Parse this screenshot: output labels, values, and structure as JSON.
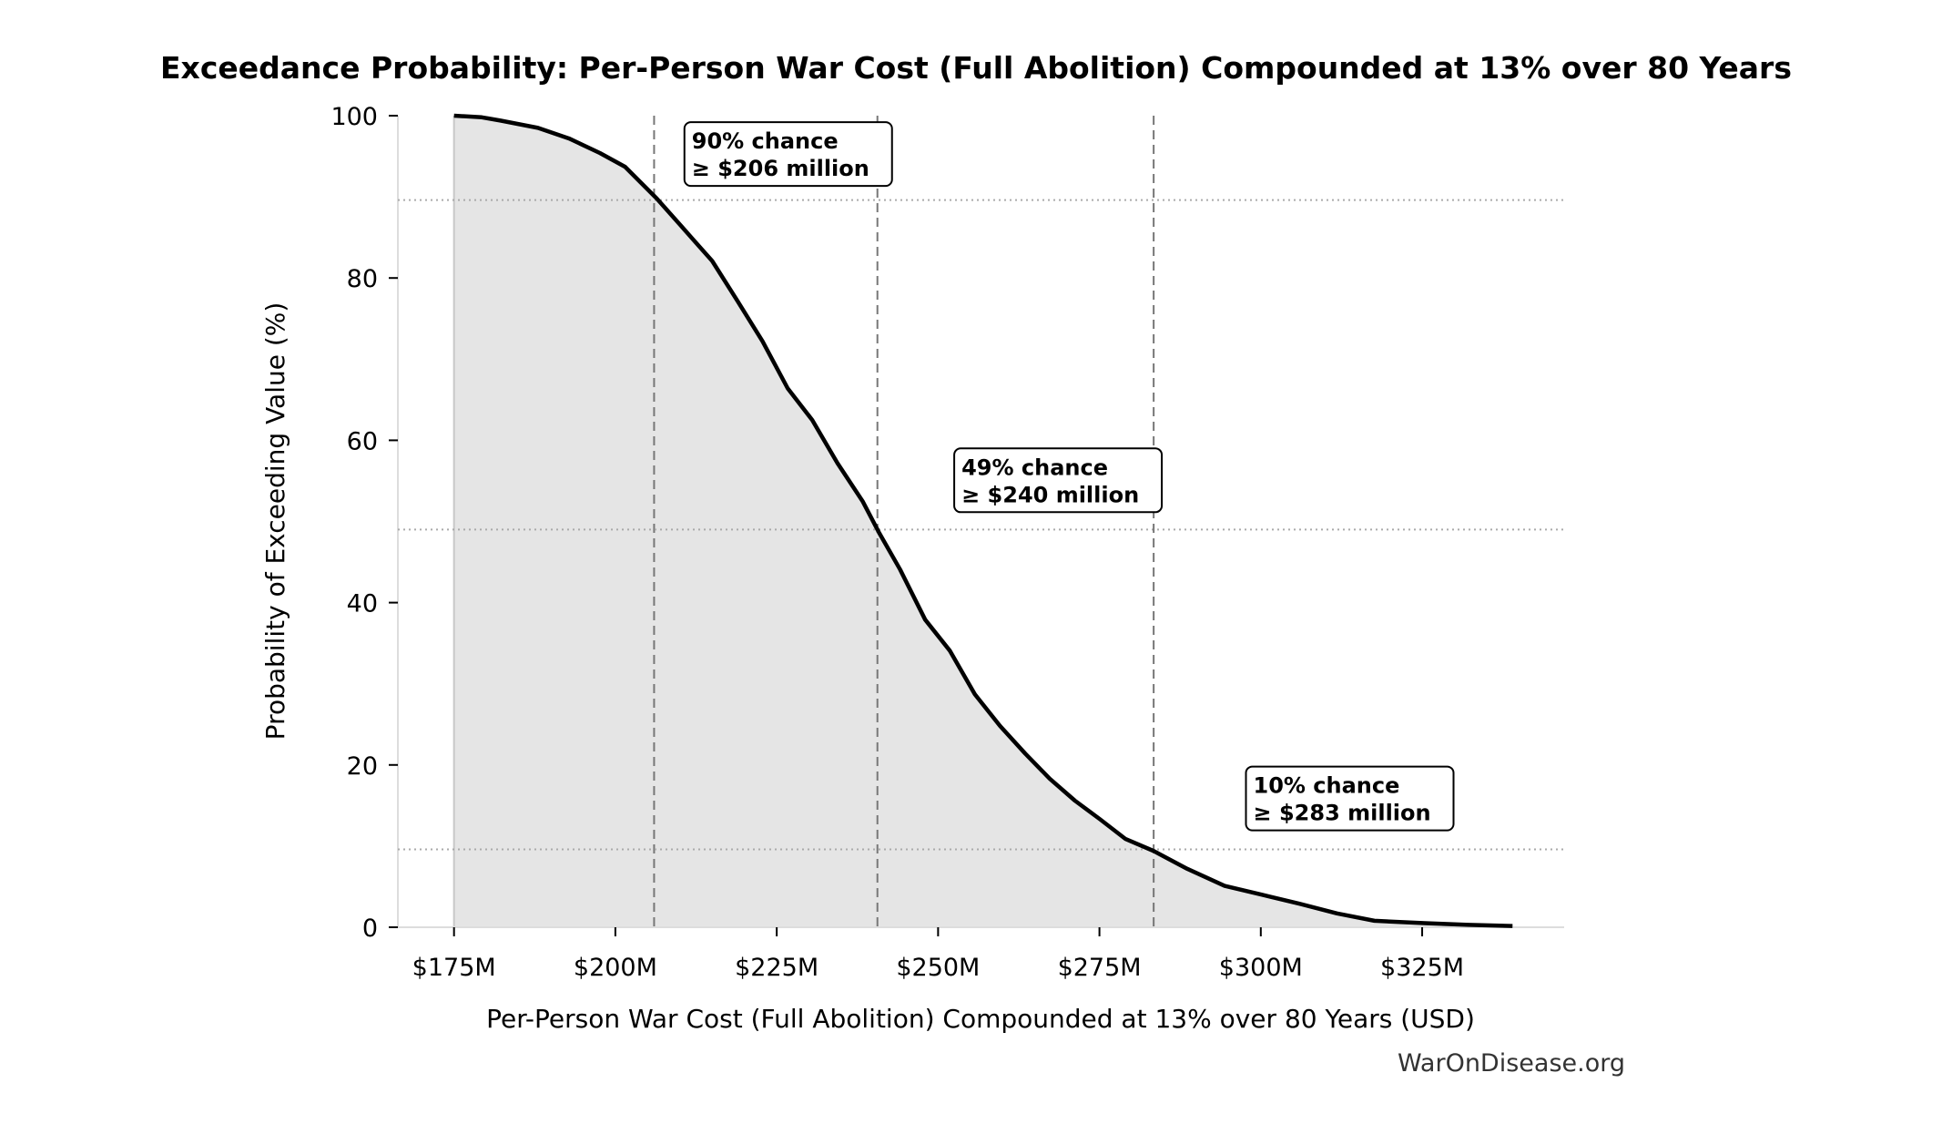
{
  "chart_data": {
    "type": "area",
    "title": "Exceedance Probability: Per-Person War Cost (Full Abolition) Compounded at 13% over 80 Years",
    "xlabel": "Per-Person War Cost (Full Abolition) Compounded at 13% over 80 Years (USD)",
    "ylabel": "Probability of Exceeding Value (%)",
    "xlim": [
      166.3,
      347
    ],
    "ylim": [
      0,
      100
    ],
    "x_ticks": [
      175,
      200,
      225,
      250,
      275,
      300,
      325
    ],
    "x_tick_labels": [
      "$175M",
      "$200M",
      "$225M",
      "$250M",
      "$275M",
      "$300M",
      "$325M"
    ],
    "y_ticks": [
      0,
      20,
      40,
      60,
      80,
      100
    ],
    "y_tick_labels": [
      "0",
      "20",
      "40",
      "60",
      "80",
      "100"
    ],
    "grid": false,
    "line_color": "#000000",
    "fill_color": "#e5e5e5",
    "series": [
      {
        "x": [
          175,
          179.3,
          182.2,
          188,
          192.8,
          197.6,
          201.5,
          206.4,
          210.2,
          215,
          218.9,
          222.8,
          226.7,
          230.5,
          234.4,
          238.3,
          240.8,
          244.1,
          248,
          251.8,
          255.7,
          259.6,
          263.5,
          267.3,
          271.2,
          275.1,
          279,
          283.4,
          288.6,
          294.4,
          300.2,
          306,
          311.8,
          317.6,
          325.4,
          332.2,
          339
        ],
        "y": [
          100,
          99.8,
          99.4,
          98.5,
          97.2,
          95.4,
          93.7,
          89.8,
          86.4,
          82.1,
          77.2,
          72.2,
          66.4,
          62.5,
          57.2,
          52.5,
          48.7,
          44.1,
          37.9,
          34.1,
          28.7,
          24.8,
          21.4,
          18.3,
          15.6,
          13.3,
          10.9,
          9.4,
          7.2,
          5.1,
          4.0,
          2.9,
          1.7,
          0.8,
          0.5,
          0.3,
          0.15
        ]
      }
    ],
    "markers": [
      {
        "x": 206,
        "y": 89.6,
        "line1": "90% chance",
        "line2": "≥ $206 million"
      },
      {
        "x": 240.6,
        "y": 49,
        "line1": "49% chance",
        "line2": "≥ $240 million"
      },
      {
        "x": 283.4,
        "y": 9.6,
        "line1": "10% chance",
        "line2": "≥ $283 million"
      }
    ]
  },
  "watermark": "WarOnDisease.org"
}
